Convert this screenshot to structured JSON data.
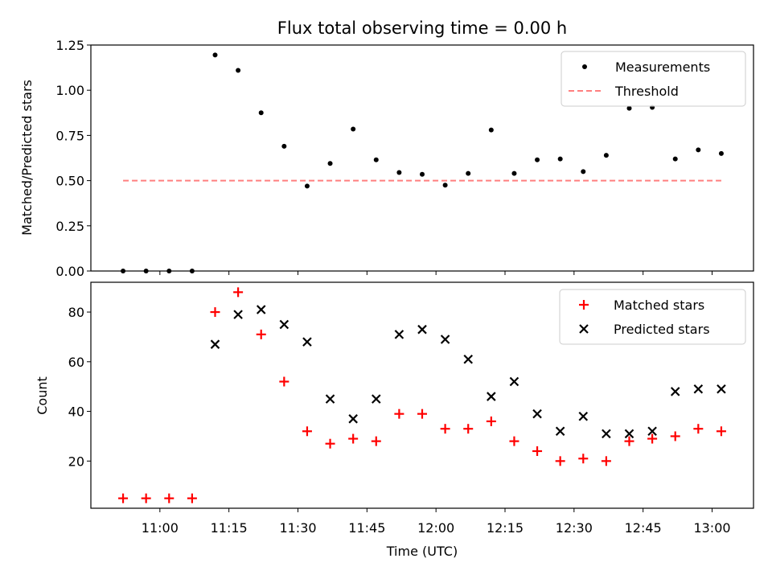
{
  "chart_data": [
    {
      "type": "scatter",
      "title": "Flux total observing time = 0.00 h",
      "xlabel": "",
      "ylabel": "Matched/Predicted stars",
      "ylim": [
        0,
        1.25
      ],
      "yticks": [
        "0.00",
        "0.25",
        "0.50",
        "0.75",
        "1.00",
        "1.25"
      ],
      "legend_position": "top-right",
      "series": [
        {
          "name": "Measurements",
          "marker": "dot",
          "color": "#000000",
          "x": [
            "10:52",
            "10:57",
            "11:02",
            "11:07",
            "11:12",
            "11:17",
            "11:22",
            "11:27",
            "11:32",
            "11:37",
            "11:42",
            "11:47",
            "11:52",
            "11:57",
            "12:02",
            "12:07",
            "12:12",
            "12:17",
            "12:22",
            "12:27",
            "12:32",
            "12:37",
            "12:42",
            "12:47",
            "12:52",
            "12:57",
            "13:02"
          ],
          "values": [
            0.0,
            0.0,
            0.0,
            0.0,
            1.195,
            1.11,
            0.875,
            0.69,
            0.47,
            0.595,
            0.785,
            0.615,
            0.545,
            0.535,
            0.475,
            0.54,
            0.78,
            0.54,
            0.615,
            0.62,
            0.55,
            0.64,
            0.9,
            0.905,
            0.62,
            0.67,
            0.65
          ]
        },
        {
          "name": "Threshold",
          "type": "line",
          "style": "dashed",
          "color": "#ff7f7f",
          "x": [
            "10:52",
            "13:02"
          ],
          "values": [
            0.5,
            0.5
          ]
        }
      ]
    },
    {
      "type": "scatter",
      "title": "",
      "xlabel": "Time (UTC)",
      "ylabel": "Count",
      "ylim": [
        1,
        92
      ],
      "yticks": [
        "20",
        "40",
        "60",
        "80"
      ],
      "xticks": [
        "11:00",
        "11:15",
        "11:30",
        "11:45",
        "12:00",
        "12:15",
        "12:30",
        "12:45",
        "13:00"
      ],
      "xlim": [
        "10:45",
        "13:09"
      ],
      "legend_position": "top-right",
      "series": [
        {
          "name": "Matched stars",
          "marker": "plus",
          "color": "#ff0000",
          "x": [
            "10:52",
            "10:57",
            "11:02",
            "11:07",
            "11:12",
            "11:17",
            "11:22",
            "11:27",
            "11:32",
            "11:37",
            "11:42",
            "11:47",
            "11:52",
            "11:57",
            "12:02",
            "12:07",
            "12:12",
            "12:17",
            "12:22",
            "12:27",
            "12:32",
            "12:37",
            "12:42",
            "12:47",
            "12:52",
            "12:57",
            "13:02"
          ],
          "values": [
            5,
            5,
            5,
            5,
            80,
            88,
            71,
            52,
            32,
            27,
            29,
            28,
            39,
            39,
            33,
            33,
            36,
            28,
            24,
            20,
            21,
            20,
            28,
            29,
            30,
            33,
            32
          ]
        },
        {
          "name": "Predicted stars",
          "marker": "x",
          "color": "#000000",
          "x": [
            "11:12",
            "11:17",
            "11:22",
            "11:27",
            "11:32",
            "11:37",
            "11:42",
            "11:47",
            "11:52",
            "11:57",
            "12:02",
            "12:07",
            "12:12",
            "12:17",
            "12:22",
            "12:27",
            "12:32",
            "12:37",
            "12:42",
            "12:47",
            "12:52",
            "12:57",
            "13:02"
          ],
          "values": [
            67,
            79,
            81,
            75,
            68,
            45,
            37,
            45,
            71,
            73,
            69,
            61,
            46,
            52,
            39,
            32,
            38,
            31,
            31,
            32,
            48,
            49,
            49
          ]
        }
      ]
    }
  ]
}
